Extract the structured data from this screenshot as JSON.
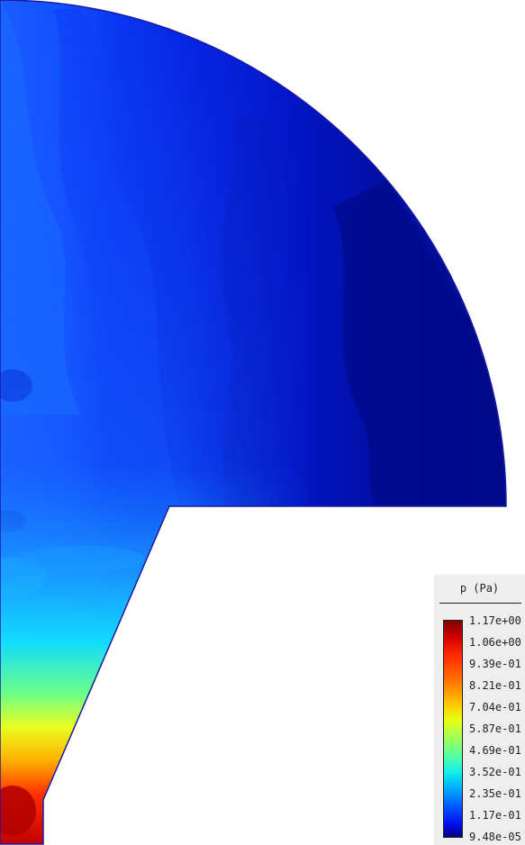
{
  "legend": {
    "title": "p (Pa)",
    "ticks": [
      "1.17e+00",
      "1.06e+00",
      "9.39e-01",
      "8.21e-01",
      "7.04e-01",
      "5.87e-01",
      "4.69e-01",
      "3.52e-01",
      "2.35e-01",
      "1.17e-01",
      "9.48e-05"
    ],
    "colors": [
      "#7f0000",
      "#d30000",
      "#ff2a00",
      "#ff7400",
      "#ffc400",
      "#e9ff13",
      "#a3ff56",
      "#5aff9b",
      "#12f0e8",
      "#00a8ff",
      "#0058ff",
      "#0010ee",
      "#000080"
    ]
  },
  "field": {
    "outline_color": "#1a1aa0",
    "background_color": "#ffffff"
  }
}
